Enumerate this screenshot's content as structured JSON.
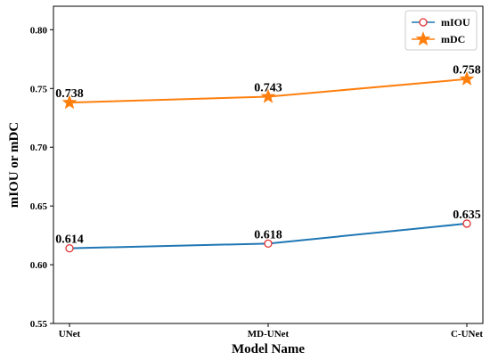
{
  "chart_data": {
    "type": "line",
    "categories": [
      "UNet",
      "MD-UNet",
      "C-UNet"
    ],
    "series": [
      {
        "name": "mIOU",
        "values": [
          0.614,
          0.618,
          0.635
        ],
        "value_labels": [
          "0.614",
          "0.618",
          "0.635"
        ],
        "color": "#1f77b4",
        "marker": "circle",
        "marker_color": "#e03030"
      },
      {
        "name": "mDC",
        "values": [
          0.738,
          0.743,
          0.758
        ],
        "value_labels": [
          "0.738",
          "0.743",
          "0.758"
        ],
        "color": "#ff7f0e",
        "marker": "star",
        "marker_color": "#ff7f0e"
      }
    ],
    "xlabel": "Model Name",
    "ylabel": "mIOU or mDC",
    "ylim": [
      0.55,
      0.82
    ],
    "yticks": [
      0.55,
      0.6,
      0.65,
      0.7,
      0.75,
      0.8
    ],
    "ytick_labels": [
      "0.55",
      "0.60",
      "0.65",
      "0.70",
      "0.75",
      "0.80"
    ],
    "grid": false,
    "legend_position": "top-right"
  }
}
